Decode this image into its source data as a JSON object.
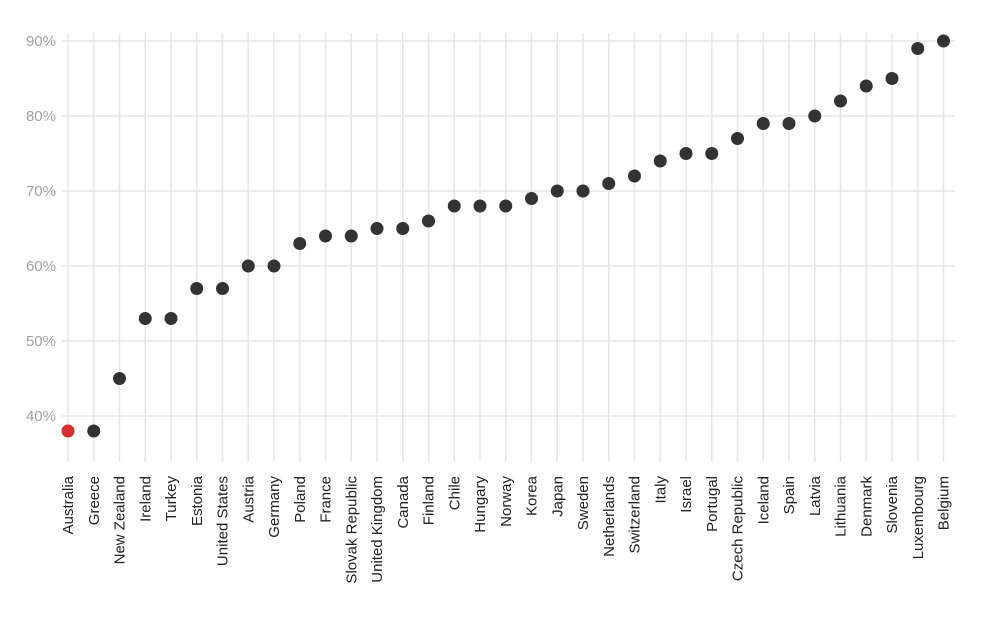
{
  "chart_data": {
    "type": "scatter",
    "title": "",
    "xlabel": "",
    "ylabel": "",
    "ylim": [
      35,
      90
    ],
    "yticks": [
      40,
      50,
      60,
      70,
      80,
      90
    ],
    "ytick_labels": [
      "40%",
      "50%",
      "60%",
      "70%",
      "80%",
      "90%"
    ],
    "grid": true,
    "legend": "none",
    "point_color": "#333333",
    "highlight_color": "#d32f2f",
    "highlight_category": "Australia",
    "categories": [
      "Australia",
      "Greece",
      "New Zealand",
      "Ireland",
      "Turkey",
      "Estonia",
      "United States",
      "Austria",
      "Germany",
      "Poland",
      "France",
      "Slovak Republic",
      "United Kingdom",
      "Canada",
      "Finland",
      "Chile",
      "Hungary",
      "Norway",
      "Korea",
      "Japan",
      "Sweden",
      "Netherlands",
      "Switzerland",
      "Italy",
      "Israel",
      "Portugal",
      "Czech Republic",
      "Iceland",
      "Spain",
      "Latvia",
      "Lithuania",
      "Denmark",
      "Slovenia",
      "Luxembourg",
      "Belgium"
    ],
    "values": [
      38,
      38,
      45,
      53,
      53,
      57,
      57,
      60,
      60,
      63,
      64,
      64,
      65,
      65,
      66,
      68,
      68,
      68,
      69,
      70,
      70,
      71,
      72,
      74,
      75,
      75,
      77,
      79,
      79,
      80,
      82,
      84,
      85,
      89,
      90
    ]
  }
}
